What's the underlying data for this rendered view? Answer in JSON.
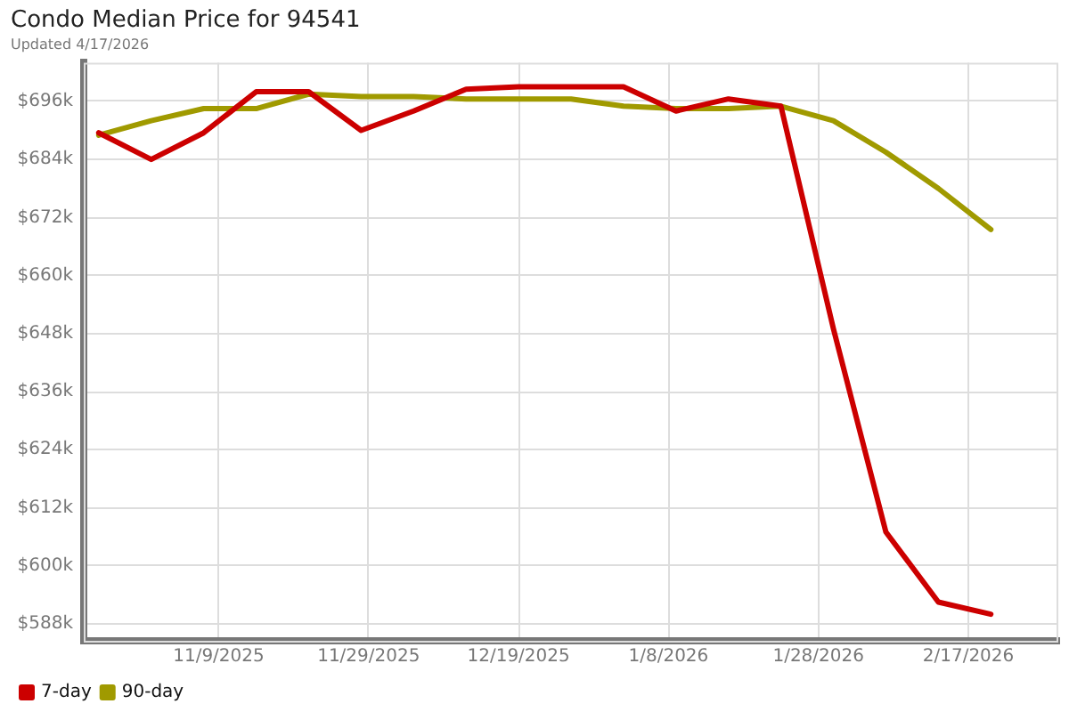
{
  "chart_data": {
    "type": "line",
    "title": "Condo Median Price for 94541",
    "subtitle": "Updated 4/17/2026",
    "x": [
      "2025-10-24",
      "2025-10-31",
      "2025-11-07",
      "2025-11-14",
      "2025-11-21",
      "2025-11-28",
      "2025-12-05",
      "2025-12-12",
      "2025-12-19",
      "2025-12-26",
      "2026-01-02",
      "2026-01-09",
      "2026-01-16",
      "2026-01-23",
      "2026-01-30",
      "2026-02-06",
      "2026-02-13",
      "2026-02-20"
    ],
    "series": [
      {
        "name": "7-day",
        "color": "#cc0000",
        "values": [
          689.5,
          684,
          689.5,
          698,
          698,
          690,
          694,
          698.5,
          699,
          699,
          699,
          694,
          696.5,
          695,
          649,
          607,
          592.5,
          590
        ]
      },
      {
        "name": "90-day",
        "color": "#a09a00",
        "values": [
          689,
          692,
          694.5,
          694.5,
          697.5,
          697,
          697,
          696.5,
          696.5,
          696.5,
          695,
          694.5,
          694.5,
          695,
          692,
          685.5,
          678,
          669.5
        ]
      }
    ],
    "xlim": [
      "2025-10-22",
      "2026-03-01"
    ],
    "xticks": [
      {
        "value": "2025-11-09",
        "label": "11/9/2025"
      },
      {
        "value": "2025-11-29",
        "label": "11/29/2025"
      },
      {
        "value": "2025-12-19",
        "label": "12/19/2025"
      },
      {
        "value": "2026-01-08",
        "label": "1/8/2026"
      },
      {
        "value": "2026-01-28",
        "label": "1/28/2026"
      },
      {
        "value": "2026-02-17",
        "label": "2/17/2026"
      }
    ],
    "ylim": [
      584.5,
      704
    ],
    "yticks": [
      {
        "value": 588,
        "label": "$588k"
      },
      {
        "value": 600,
        "label": "$600k"
      },
      {
        "value": 612,
        "label": "$612k"
      },
      {
        "value": 624,
        "label": "$624k"
      },
      {
        "value": 636,
        "label": "$636k"
      },
      {
        "value": 648,
        "label": "$648k"
      },
      {
        "value": 660,
        "label": "$660k"
      },
      {
        "value": 672,
        "label": "$672k"
      },
      {
        "value": 684,
        "label": "$684k"
      },
      {
        "value": 696,
        "label": "$696k"
      }
    ],
    "grid": true,
    "legend": "bottom left"
  }
}
